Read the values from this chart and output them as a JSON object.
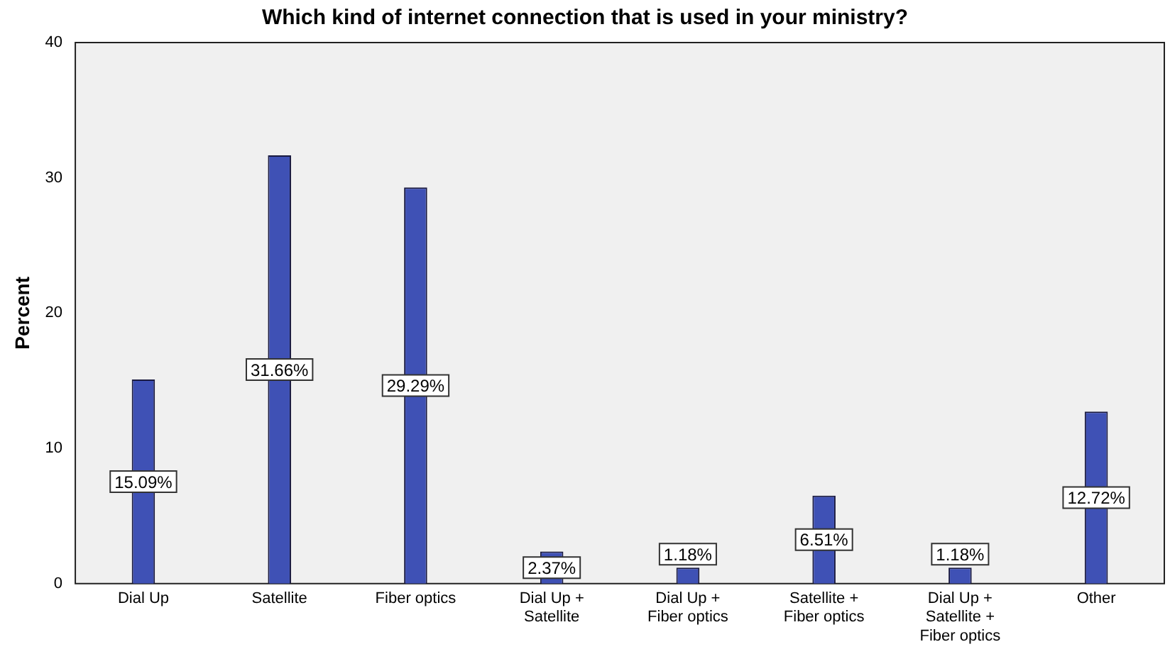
{
  "chart_data": {
    "type": "bar",
    "title": "Which kind of internet connection that is used in your ministry?",
    "ylabel": "Percent",
    "categories": [
      "Dial Up",
      "Satellite",
      "Fiber optics",
      "Dial Up + Satellite",
      "Dial Up + Fiber optics",
      "Satellite + Fiber optics",
      "Dial Up + Satellite + Fiber optics",
      "Other"
    ],
    "values": [
      15.09,
      31.66,
      29.29,
      2.37,
      1.18,
      6.51,
      1.18,
      12.72
    ],
    "value_labels": [
      "15.09%",
      "31.66%",
      "29.29%",
      "2.37%",
      "1.18%",
      "6.51%",
      "1.18%",
      "12.72%"
    ],
    "color": "#3f51b5",
    "ylim": [
      0,
      40
    ],
    "yticks": [
      0,
      10,
      20,
      30,
      40
    ],
    "grid": false,
    "legend": false
  }
}
